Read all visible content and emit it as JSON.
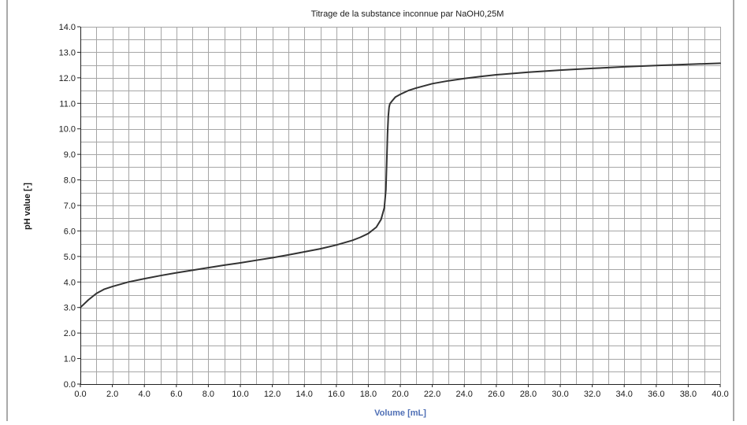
{
  "chart_data": {
    "type": "line",
    "title": "Titrage de la substance inconnue par NaOH0,25M",
    "xlabel": "Volume [mL]",
    "ylabel": "pH value [-]",
    "xlim": [
      0,
      40
    ],
    "ylim": [
      0,
      14
    ],
    "grid": true,
    "legend": "none",
    "x_ticks": [
      "0.0",
      "2.0",
      "4.0",
      "6.0",
      "8.0",
      "10.0",
      "12.0",
      "14.0",
      "16.0",
      "18.0",
      "20.0",
      "22.0",
      "24.0",
      "26.0",
      "28.0",
      "30.0",
      "32.0",
      "34.0",
      "36.0",
      "38.0",
      "40.0"
    ],
    "y_ticks": [
      "0.0",
      "1.0",
      "2.0",
      "3.0",
      "4.0",
      "5.0",
      "6.0",
      "7.0",
      "8.0",
      "9.0",
      "10.0",
      "11.0",
      "12.0",
      "13.0",
      "14.0"
    ],
    "colors": {
      "line": "#333333",
      "grid": "#a6a6a6",
      "xlabel": "#4f6fb5"
    },
    "series": [
      {
        "x": [
          0,
          0.5,
          1,
          1.5,
          2,
          3,
          4,
          5,
          6,
          7,
          8,
          9,
          10,
          11,
          12,
          13,
          14,
          15,
          16,
          17,
          17.5,
          18,
          18.5,
          18.8,
          19,
          19.1,
          19.15,
          19.2,
          19.25,
          19.3,
          19.35,
          19.5,
          19.7,
          20,
          20.5,
          21,
          22,
          23,
          24,
          25,
          26,
          28,
          30,
          32,
          34,
          36,
          38,
          40
        ],
        "y": [
          3.0,
          3.3,
          3.55,
          3.72,
          3.82,
          4.0,
          4.13,
          4.25,
          4.36,
          4.46,
          4.56,
          4.66,
          4.75,
          4.85,
          4.95,
          5.06,
          5.18,
          5.3,
          5.45,
          5.63,
          5.75,
          5.9,
          6.15,
          6.45,
          6.9,
          7.6,
          8.6,
          9.8,
          10.5,
          10.85,
          10.98,
          11.1,
          11.25,
          11.35,
          11.5,
          11.6,
          11.77,
          11.88,
          11.97,
          12.05,
          12.12,
          12.22,
          12.3,
          12.37,
          12.43,
          12.48,
          12.53,
          12.57
        ]
      }
    ]
  }
}
